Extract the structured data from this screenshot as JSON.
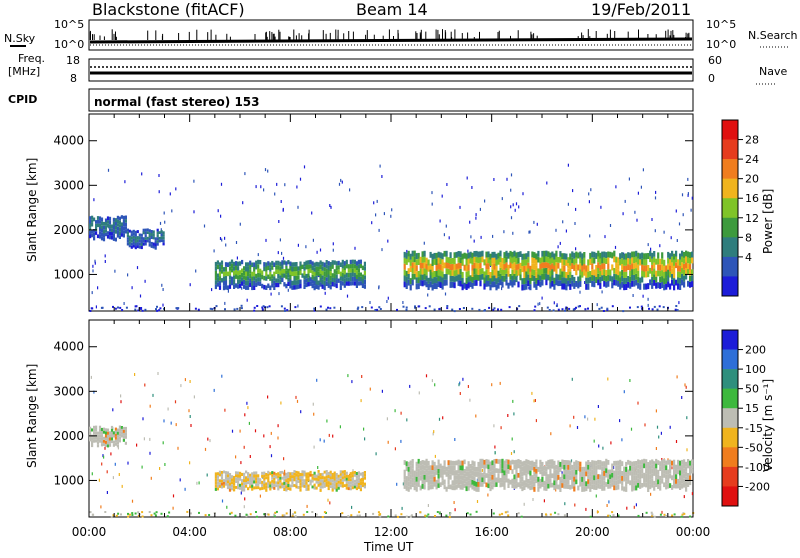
{
  "header": {
    "station": "Blackstone (fitACF)",
    "beam": "Beam 14",
    "date": "19/Feb/2011"
  },
  "top_panels": {
    "nsky_label": "N.Sky",
    "nsearch_label": "N.Search",
    "exp_hi_left": "10^5",
    "exp_lo_left": "10^0",
    "exp_hi_right": "10^5",
    "exp_lo_right": "10^0",
    "freq_label": "Freq.",
    "freq_unit": "[MHz]",
    "freq_hi": "18",
    "freq_lo": "8",
    "nave_label": "Nave",
    "nave_hi": "60",
    "nave_lo": "0",
    "cpid_label": "CPID",
    "cpid_text": "normal (fast stereo) 153"
  },
  "chart_data": [
    {
      "type": "heatmap",
      "name": "power",
      "ylabel": "Slant Range [km]",
      "xlabel": "Time UT",
      "x_ticks": [
        "00:00",
        "04:00",
        "08:00",
        "12:00",
        "16:00",
        "20:00",
        "00:00"
      ],
      "x_range_hours": [
        0,
        24
      ],
      "y_ticks": [
        1000,
        2000,
        3000,
        4000
      ],
      "ylim": [
        180,
        4600
      ],
      "colorbar": {
        "label": "Power [dB]",
        "ticks": [
          "4",
          "8",
          "12",
          "16",
          "20",
          "24",
          "28"
        ],
        "colors": [
          "#1c1cd8",
          "#2e55b8",
          "#2f7d7d",
          "#3d9a3d",
          "#7fc428",
          "#f0b41e",
          "#f07d1e",
          "#e63c1e",
          "#e01010"
        ]
      },
      "echo_regions": [
        {
          "t_start": 0.0,
          "t_end": 1.5,
          "r_low": 1800,
          "r_high": 2300,
          "level": 1
        },
        {
          "t_start": 1.5,
          "t_end": 3.0,
          "r_low": 1600,
          "r_high": 2000,
          "level": 1
        },
        {
          "t_start": 5.0,
          "t_end": 11.0,
          "r_low": 700,
          "r_high": 1300,
          "level": 3
        },
        {
          "t_start": 12.5,
          "t_end": 24.0,
          "r_low": 700,
          "r_high": 1500,
          "level": 5
        }
      ]
    },
    {
      "type": "heatmap",
      "name": "velocity",
      "ylabel": "Slant Range [km]",
      "xlabel": "Time UT",
      "x_ticks": [
        "00:00",
        "04:00",
        "08:00",
        "12:00",
        "16:00",
        "20:00",
        "00:00"
      ],
      "x_range_hours": [
        0,
        24
      ],
      "y_ticks": [
        1000,
        2000,
        3000,
        4000
      ],
      "ylim": [
        180,
        4600
      ],
      "colorbar": {
        "label": "Velocity [m s⁻¹]",
        "ticks": [
          "200",
          "100",
          "50",
          "15",
          "-15",
          "-50",
          "-100",
          "-200"
        ],
        "colors": [
          "#1c1cd8",
          "#2e6fd8",
          "#2f8f7d",
          "#3db83d",
          "#bdbdb4",
          "#f0b41e",
          "#f07d1e",
          "#e63c1e",
          "#e01010"
        ]
      },
      "echo_regions": [
        {
          "t_start": 0.0,
          "t_end": 1.5,
          "r_low": 1800,
          "r_high": 2200,
          "velocity": "-15 to 15"
        },
        {
          "t_start": 5.0,
          "t_end": 11.0,
          "r_low": 800,
          "r_high": 1200,
          "velocity": "-50 to 15"
        },
        {
          "t_start": 12.5,
          "t_end": 24.0,
          "r_low": 800,
          "r_high": 1450,
          "velocity": "-15 to 15"
        }
      ]
    }
  ]
}
